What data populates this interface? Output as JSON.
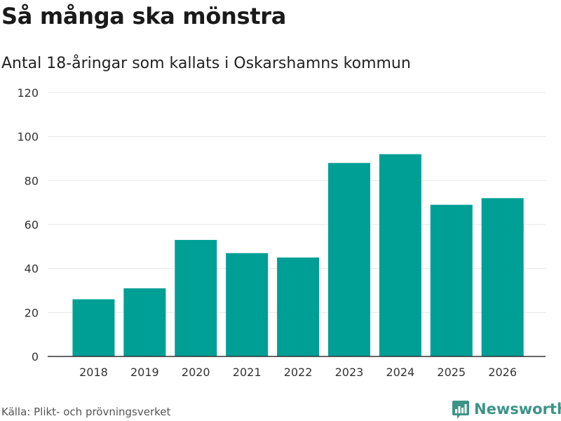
{
  "title": "Så många ska mönstra",
  "subtitle": "Antal 18-åringar som kallats i Oskarshamns kommun",
  "source": "Källa: Plikt- och prövningsverket",
  "brand": "Newsworthy",
  "colors": {
    "bar": "#009f96",
    "grid": "#e6e6e6",
    "axis": "#333333",
    "brand": "#3d9486"
  },
  "chart_data": {
    "type": "bar",
    "title": "Så många ska mönstra",
    "subtitle": "Antal 18-åringar som kallats i Oskarshamns kommun",
    "xlabel": "",
    "ylabel": "",
    "categories": [
      "2018",
      "2019",
      "2020",
      "2021",
      "2022",
      "2023",
      "2024",
      "2025",
      "2026"
    ],
    "values": [
      26,
      31,
      53,
      47,
      45,
      88,
      92,
      69,
      72
    ],
    "ylim": [
      0,
      120
    ],
    "yticks": [
      0,
      20,
      40,
      60,
      80,
      100,
      120
    ],
    "grid": true,
    "legend": "none"
  }
}
